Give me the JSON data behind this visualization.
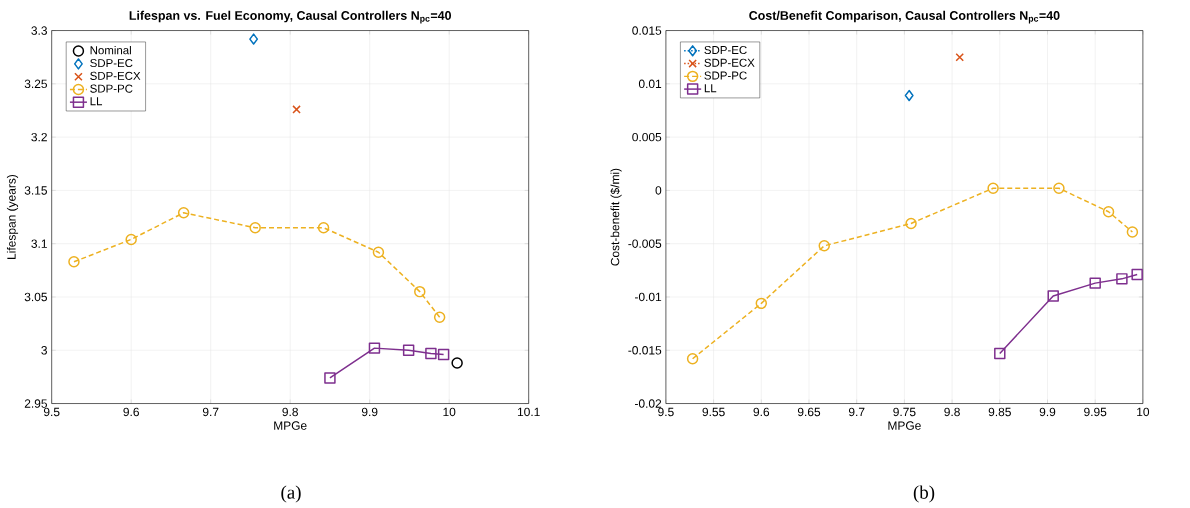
{
  "chart_data": [
    {
      "type": "line",
      "title": "Lifespan vs. Fuel Economy, Causal Controllers N$_{pc}$=40",
      "xlabel": "MPGe",
      "ylabel": "Lifespan (years)",
      "annotations": [
        "(a)"
      ],
      "xlim": [
        9.5,
        10.1
      ],
      "xticks": [
        9.5,
        9.6,
        9.7,
        9.8,
        9.9,
        10,
        10.1
      ],
      "ylim": [
        2.95,
        3.3
      ],
      "yticks": [
        2.95,
        3,
        3.05,
        3.1,
        3.15,
        3.2,
        3.25,
        3.3
      ],
      "grid": true,
      "legend": "top left",
      "series": [
        {
          "name": "Nominal",
          "type": "scatter",
          "color": "#000000",
          "marker": "circle",
          "x": [
            10.01
          ],
          "values": [
            2.988
          ]
        },
        {
          "name": "SDP-EC",
          "type": "scatter",
          "color": "#0072bd",
          "marker": "diamond",
          "x": [
            9.754
          ],
          "values": [
            3.292
          ]
        },
        {
          "name": "SDP-ECX",
          "type": "scatter",
          "color": "#d95319",
          "marker": "cross",
          "x": [
            9.808
          ],
          "values": [
            3.226
          ]
        },
        {
          "name": "SDP-PC",
          "color": "#edb120",
          "marker": "circle",
          "line_style": "dashed",
          "x": [
            9.528,
            9.6,
            9.666,
            9.756,
            9.842,
            9.911,
            9.963,
            9.988
          ],
          "values": [
            3.083,
            3.104,
            3.129,
            3.115,
            3.115,
            3.092,
            3.055,
            3.031
          ]
        },
        {
          "name": "LL",
          "color": "#7e2f8e",
          "marker": "square",
          "line_style": "solid",
          "x": [
            9.85,
            9.906,
            9.949,
            9.977,
            9.993
          ],
          "values": [
            2.974,
            3.002,
            3.0,
            2.997,
            2.996
          ]
        }
      ]
    },
    {
      "type": "line",
      "title": "Cost/Benefit Comparison, Causal Controllers N$_{pc}$=40",
      "xlabel": "MPGe",
      "ylabel": "Cost-benefit ($/mi)",
      "annotations": [
        "(b)"
      ],
      "xlim": [
        9.5,
        10
      ],
      "xticks": [
        9.5,
        9.55,
        9.6,
        9.65,
        9.7,
        9.75,
        9.8,
        9.85,
        9.9,
        9.95,
        10
      ],
      "ylim": [
        -0.02,
        0.015
      ],
      "yticks": [
        -0.02,
        -0.015,
        -0.01,
        -0.005,
        0,
        0.005,
        0.01,
        0.015
      ],
      "grid": true,
      "legend": "top left",
      "series": [
        {
          "name": "SDP-EC",
          "type": "scatter",
          "color": "#0072bd",
          "marker": "diamond",
          "line_style": "dotted",
          "x": [
            9.755
          ],
          "values": [
            0.0089
          ]
        },
        {
          "name": "SDP-ECX",
          "type": "scatter",
          "color": "#d95319",
          "marker": "cross",
          "line_style": "dotted",
          "x": [
            9.808
          ],
          "values": [
            0.0125
          ]
        },
        {
          "name": "SDP-PC",
          "color": "#edb120",
          "marker": "circle",
          "line_style": "dashed",
          "x": [
            9.528,
            9.6,
            9.666,
            9.757,
            9.843,
            9.912,
            9.964,
            9.989
          ],
          "values": [
            -0.0158,
            -0.0106,
            -0.0052,
            -0.0031,
            0.0002,
            0.0002,
            -0.002,
            -0.0039
          ]
        },
        {
          "name": "LL",
          "color": "#7e2f8e",
          "marker": "square",
          "line_style": "solid",
          "x": [
            9.85,
            9.906,
            9.95,
            9.978,
            9.994
          ],
          "values": [
            -0.0153,
            -0.0099,
            -0.0087,
            -0.0083,
            -0.0079
          ]
        }
      ]
    }
  ]
}
